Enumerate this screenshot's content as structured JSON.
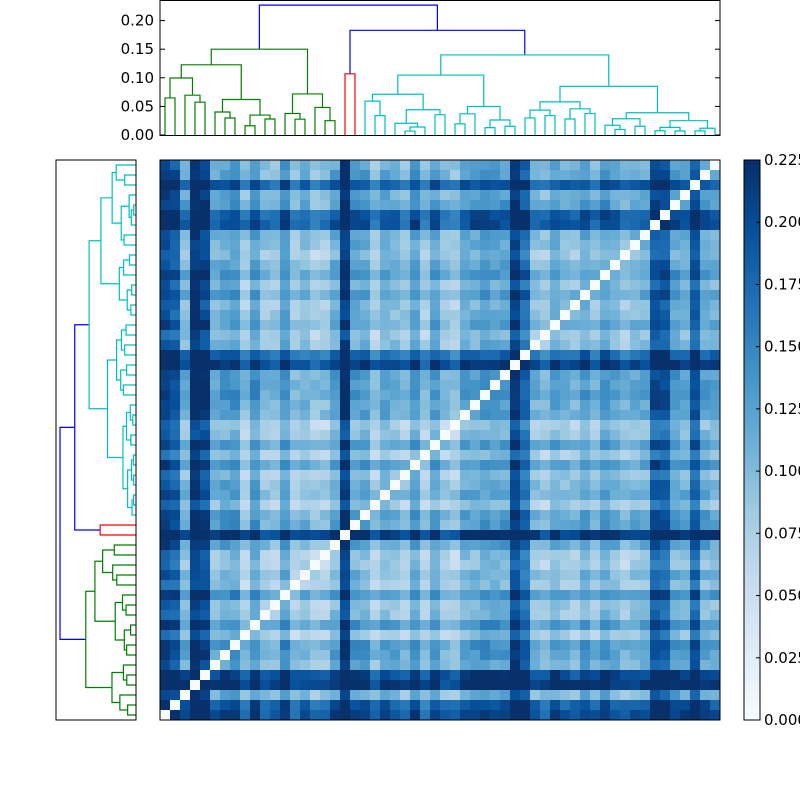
{
  "chart_data": [
    {
      "type": "dendrogram",
      "orientation": "top",
      "ylim": [
        0,
        0.236
      ],
      "yticks": [
        "0.00",
        "0.05",
        "0.10",
        "0.15",
        "0.20"
      ],
      "ytick_values": [
        0,
        0.05,
        0.1,
        0.15,
        0.2
      ],
      "colors": {
        "green": "#007f00",
        "red": "#ff0000",
        "cyan": "#00bfbf",
        "blue": "#0000ff"
      },
      "root_height": 0.227,
      "sub_merge_height": 0.183,
      "clusters": [
        {
          "name": "green",
          "leaves": 18,
          "height": 0.15
        },
        {
          "name": "red",
          "leaves": 2,
          "height": 0.107
        },
        {
          "name": "cyan",
          "leaves": 36,
          "height": 0.14
        }
      ]
    },
    {
      "type": "dendrogram",
      "orientation": "left",
      "clusters": [
        {
          "name": "cyan",
          "leaves": 36
        },
        {
          "name": "red",
          "leaves": 2
        },
        {
          "name": "green",
          "leaves": 18
        }
      ]
    },
    {
      "type": "heatmap",
      "size": 56,
      "colormap": "Blues",
      "vmin": 0,
      "vmax": 0.225,
      "diagonal": 0,
      "colorbar_ticks": [
        "0.000",
        "0.025",
        "0.050",
        "0.075",
        "0.100",
        "0.125",
        "0.150",
        "0.175",
        "0.200",
        "0.225"
      ],
      "colorbar_values": [
        0,
        0.025,
        0.05,
        0.075,
        0.1,
        0.125,
        0.15,
        0.175,
        0.2,
        0.225
      ],
      "highlight_rows": [
        0,
        1,
        3,
        4,
        18,
        35,
        36,
        49,
        50,
        53
      ]
    }
  ]
}
